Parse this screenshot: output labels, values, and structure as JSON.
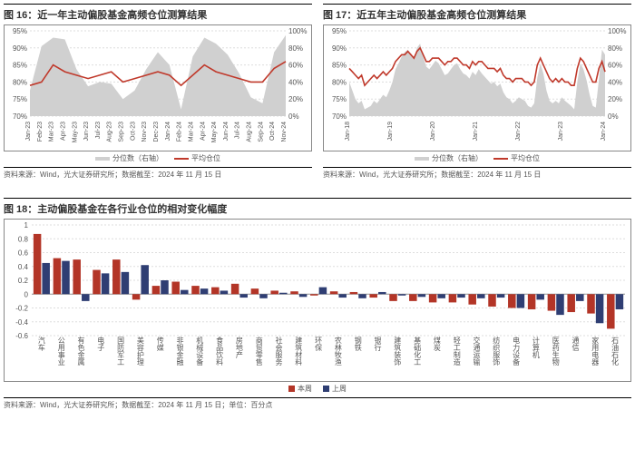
{
  "chart16": {
    "title": "图 16：近一年主动偏股基金高频仓位测算结果",
    "source": "资料来源：Wind，光大证券研究所；数据截至：2024 年 11 月 15 日",
    "type": "area+line",
    "left_axis": {
      "min": 70,
      "max": 95,
      "step": 5,
      "suffix": "%"
    },
    "right_axis": {
      "min": 0,
      "max": 100,
      "step": 20,
      "suffix": "%"
    },
    "x_labels": [
      "Jan-23",
      "Feb-23",
      "Mar-23",
      "Apr-23",
      "May-23",
      "Jun-23",
      "Jul-23",
      "Aug-23",
      "Sep-23",
      "Oct-23",
      "Nov-23",
      "Dec-23",
      "Jan-24",
      "Feb-24",
      "Mar-24",
      "Apr-24",
      "May-24",
      "Jun-24",
      "Jul-24",
      "Aug-24",
      "Sep-24",
      "Oct-24",
      "Nov-24"
    ],
    "area_series": {
      "label": "分位数（右轴）",
      "color": "#d0d0d0",
      "values": [
        30,
        82,
        92,
        90,
        55,
        35,
        40,
        38,
        20,
        30,
        55,
        75,
        60,
        8,
        70,
        92,
        85,
        72,
        50,
        22,
        15,
        75,
        95
      ]
    },
    "line_series": {
      "label": "平均仓位",
      "color": "#c0392b",
      "width": 1.6,
      "values": [
        79,
        80,
        85,
        83,
        82,
        81,
        82,
        83,
        80,
        81,
        82,
        83,
        82,
        79,
        82,
        85,
        83,
        82,
        81,
        80,
        80,
        84,
        86
      ]
    },
    "legend_swatch_area": "#d0d0d0",
    "legend_swatch_line": "#c0392b",
    "grid_color": "#dddddd",
    "border_color": "#888888",
    "background": "#ffffff"
  },
  "chart17": {
    "title": "图 17：近五年主动偏股基金高频仓位测算结果",
    "source": "资料来源：Wind，光大证券研究所；数据截至：2024 年 11 月 15 日",
    "type": "area+line",
    "left_axis": {
      "min": 70,
      "max": 95,
      "step": 5,
      "suffix": "%"
    },
    "right_axis": {
      "min": 0,
      "max": 100,
      "step": 20,
      "suffix": "%"
    },
    "x_labels": [
      "Jan-18",
      "Jan-19",
      "Jan-20",
      "Jan-21",
      "Jan-22",
      "Jan-23",
      "Jan-24"
    ],
    "area_points_per_seg": 12,
    "area_series": {
      "label": "分位数（右轴）",
      "color": "#d0d0d0",
      "values": [
        40,
        30,
        20,
        15,
        18,
        8,
        10,
        12,
        18,
        15,
        20,
        25,
        22,
        30,
        40,
        55,
        62,
        70,
        75,
        78,
        72,
        68,
        80,
        85,
        70,
        58,
        55,
        60,
        65,
        62,
        55,
        48,
        50,
        55,
        60,
        62,
        55,
        50,
        48,
        44,
        52,
        48,
        55,
        50,
        46,
        42,
        38,
        40,
        35,
        38,
        28,
        22,
        20,
        15,
        18,
        22,
        20,
        18,
        12,
        10,
        15,
        45,
        62,
        50,
        30,
        18,
        15,
        18,
        15,
        22,
        18,
        15,
        12,
        8,
        40,
        62,
        55,
        42,
        25,
        12,
        10,
        43,
        78,
        72
      ]
    },
    "line_series": {
      "label": "平均仓位",
      "color": "#c0392b",
      "width": 1.6,
      "values": [
        84,
        83,
        82,
        81,
        82,
        79,
        80,
        81,
        82,
        81,
        82,
        83,
        82,
        83,
        84,
        86,
        87,
        88,
        88,
        89,
        88,
        87,
        89,
        90,
        88,
        86,
        86,
        87,
        87,
        87,
        86,
        85,
        86,
        86,
        87,
        87,
        86,
        85,
        85,
        84,
        86,
        85,
        86,
        86,
        85,
        84,
        84,
        84,
        83,
        84,
        82,
        81,
        81,
        80,
        81,
        81,
        81,
        80,
        80,
        79,
        80,
        85,
        87,
        85,
        83,
        81,
        80,
        81,
        80,
        81,
        80,
        80,
        79,
        79,
        84,
        87,
        86,
        84,
        82,
        80,
        80,
        84,
        86,
        83
      ]
    },
    "legend_swatch_area": "#d0d0d0",
    "legend_swatch_line": "#c0392b",
    "grid_color": "#dddddd",
    "border_color": "#888888",
    "background": "#ffffff"
  },
  "chart18": {
    "title": "图 18：主动偏股基金在各行业仓位的相对变化幅度",
    "source": "资料来源：Wind，光大证券研究所；数据截至：2024 年 11 月 15 日；单位：百分点",
    "type": "grouped-bar",
    "y_axis": {
      "min": -0.6,
      "max": 1.0,
      "step": 0.2
    },
    "categories": [
      "汽车",
      "公用事业",
      "有色金属",
      "电子",
      "国防军工",
      "美容护理",
      "传媒",
      "非银金融",
      "机械设备",
      "食品饮料",
      "房地产",
      "商贸零售",
      "社会服务",
      "建筑材料",
      "环保",
      "农林牧渔",
      "钢铁",
      "银行",
      "建筑装饰",
      "基础化工",
      "煤炭",
      "轻工制造",
      "交通运输",
      "纺织服饰",
      "电力设备",
      "计算机",
      "医药生物",
      "通信",
      "家用电器",
      "石油石化"
    ],
    "series_a": {
      "label": "本周",
      "color": "#b33527",
      "values": [
        0.87,
        0.52,
        0.5,
        0.35,
        0.5,
        -0.08,
        0.12,
        0.18,
        0.12,
        0.1,
        0.15,
        0.08,
        0.05,
        0.04,
        -0.02,
        0.04,
        0.03,
        -0.05,
        -0.1,
        -0.1,
        -0.12,
        -0.12,
        -0.15,
        -0.18,
        -0.2,
        -0.22,
        -0.24,
        -0.26,
        -0.28,
        -0.5
      ]
    },
    "series_b": {
      "label": "上周",
      "color": "#2f3e73",
      "values": [
        0.45,
        0.48,
        -0.1,
        0.3,
        0.32,
        0.42,
        0.2,
        0.06,
        0.08,
        0.05,
        -0.05,
        -0.06,
        0.02,
        -0.04,
        0.1,
        -0.05,
        -0.06,
        0.03,
        -0.02,
        -0.04,
        -0.06,
        -0.05,
        -0.06,
        -0.05,
        -0.2,
        -0.08,
        -0.3,
        -0.1,
        -0.42,
        -0.22
      ]
    },
    "bar_group_width": 0.78,
    "bar_gap": 0.05,
    "grid_color": "#dddddd",
    "border_color": "#888888",
    "background": "#ffffff"
  }
}
